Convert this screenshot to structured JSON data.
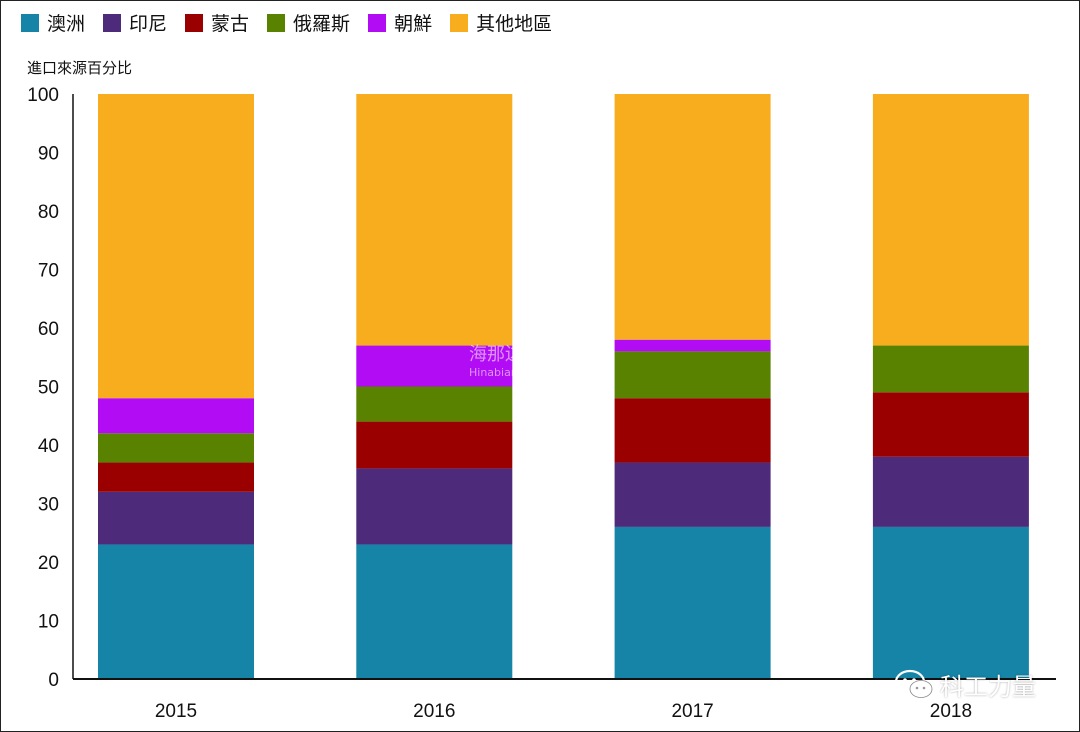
{
  "legend": {
    "items": [
      {
        "label": "澳洲",
        "color": "#1584a6"
      },
      {
        "label": "印尼",
        "color": "#4e2a7b"
      },
      {
        "label": "蒙古",
        "color": "#9b0000"
      },
      {
        "label": "俄羅斯",
        "color": "#588200"
      },
      {
        "label": "朝鮮",
        "color": "#b20cf5"
      },
      {
        "label": "其他地區",
        "color": "#f8ad1f"
      }
    ]
  },
  "watermark": {
    "text": "海那边",
    "sub": "Hinabian"
  },
  "brand": {
    "label": "科工力量",
    "icon": "wechat-icon"
  },
  "chart_data": {
    "type": "bar",
    "stacked": true,
    "categories": [
      "2015",
      "2016",
      "2017",
      "2018"
    ],
    "series": [
      {
        "name": "澳洲",
        "values": [
          23,
          23,
          26,
          26
        ]
      },
      {
        "name": "印尼",
        "values": [
          9,
          13,
          11,
          12
        ]
      },
      {
        "name": "蒙古",
        "values": [
          5,
          8,
          11,
          11
        ]
      },
      {
        "name": "俄羅斯",
        "values": [
          5,
          6,
          8,
          8
        ]
      },
      {
        "name": "朝鮮",
        "values": [
          6,
          7,
          2,
          0
        ]
      },
      {
        "name": "其他地區",
        "values": [
          52,
          43,
          42,
          43
        ]
      }
    ],
    "ylabel": "進口來源百分比",
    "xlabel": "",
    "ylim": [
      0,
      100
    ],
    "yticks": [
      0,
      10,
      20,
      30,
      40,
      50,
      60,
      70,
      80,
      90,
      100
    ],
    "grid": false,
    "legend_position": "top-left"
  }
}
